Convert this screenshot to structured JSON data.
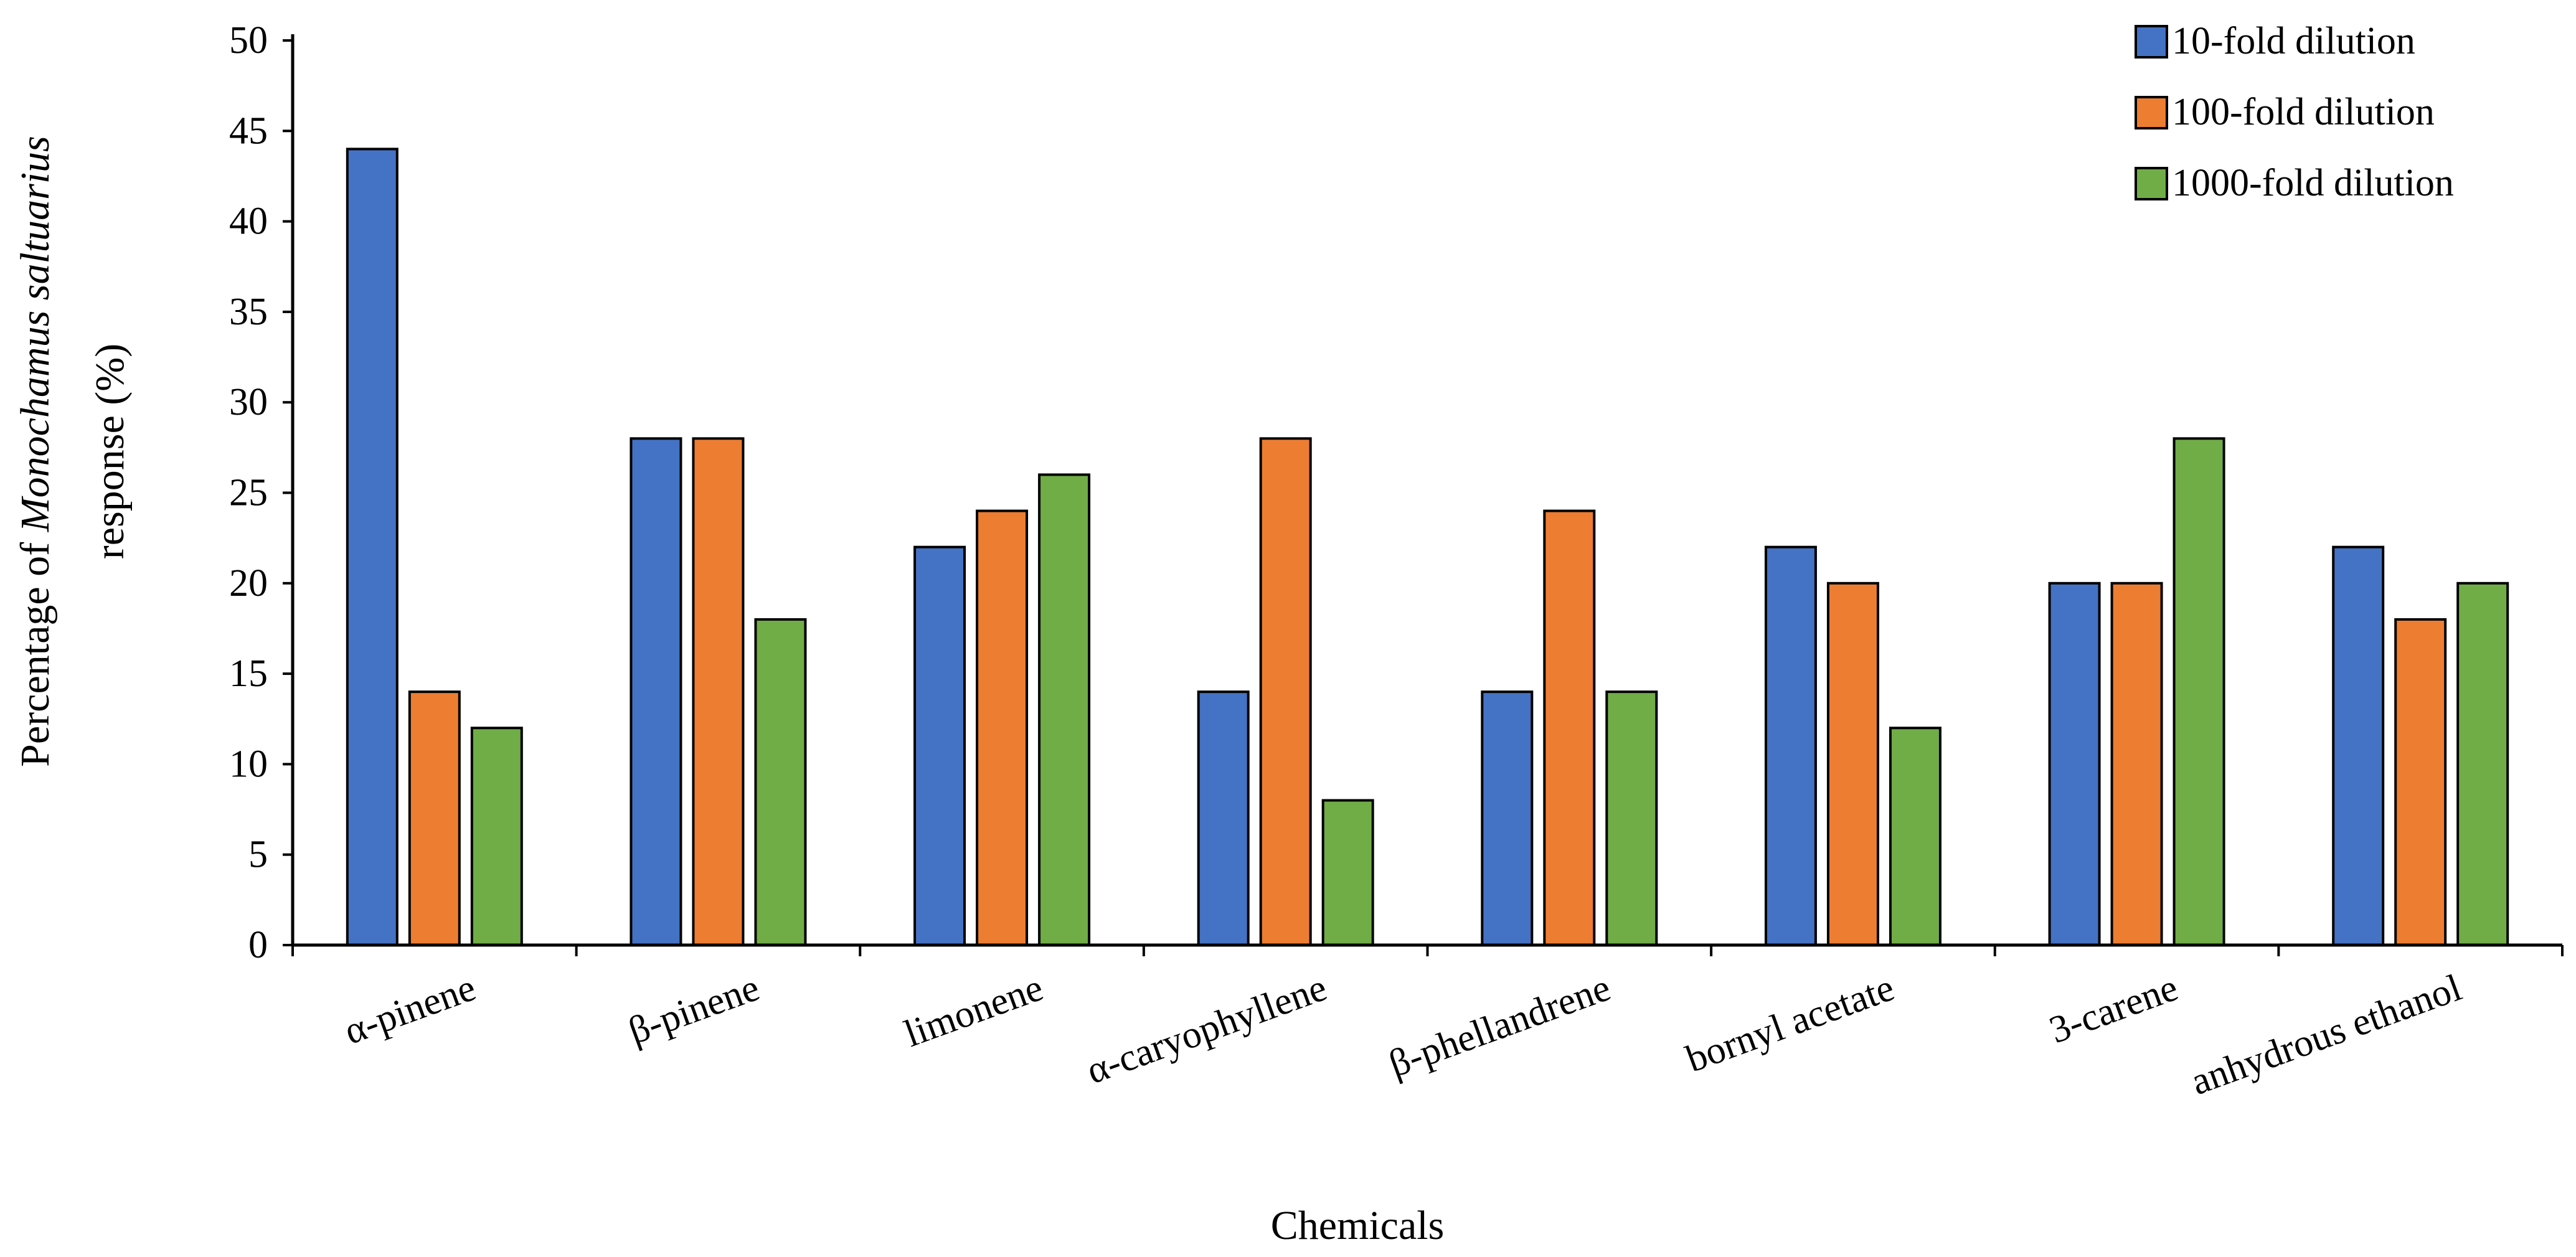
{
  "chart_data": {
    "type": "bar",
    "title": "",
    "xlabel": "Chemicals",
    "ylabel": {
      "line1_prefix": "Percentage of ",
      "line1_italic": "Monochamus saltuarius",
      "line2": "response (%)"
    },
    "ylim": [
      0,
      50
    ],
    "yticks": [
      0,
      5,
      10,
      15,
      20,
      25,
      30,
      35,
      40,
      45,
      50
    ],
    "grid": false,
    "legend_position": "top-right",
    "categories": [
      "α-pinene",
      "β-pinene",
      "limonene",
      "α-caryophyllene",
      "β-phellandrene",
      "bornyl acetate",
      "3-carene",
      "anhydrous ethanol"
    ],
    "series": [
      {
        "name": "10-fold dilution",
        "color": "#4472C4",
        "values": [
          44,
          28,
          22,
          14,
          14,
          22,
          20,
          22
        ]
      },
      {
        "name": "100-fold dilution",
        "color": "#ED7D31",
        "values": [
          14,
          28,
          24,
          28,
          24,
          20,
          20,
          18
        ]
      },
      {
        "name": "1000-fold dilution",
        "color": "#70AD47",
        "values": [
          12,
          18,
          26,
          8,
          14,
          12,
          28,
          20
        ]
      }
    ]
  }
}
